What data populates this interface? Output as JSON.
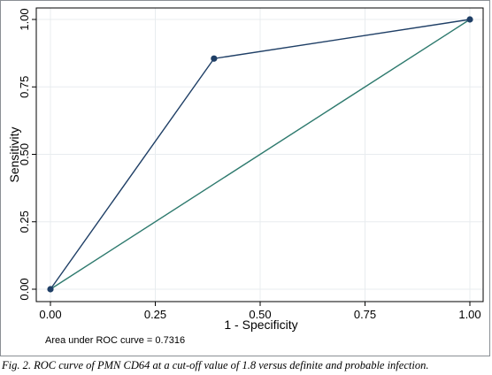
{
  "caption": "Fig. 2. ROC curve of PMN CD64 at a cut-off value of 1.8 versus definite and probable infection.",
  "chart_data": {
    "type": "line",
    "xlabel": "1 - Specificity",
    "ylabel": "Sensitivity",
    "xlim": [
      0,
      1
    ],
    "ylim": [
      0,
      1
    ],
    "x_ticks": [
      "0.00",
      "0.25",
      "0.50",
      "0.75",
      "1.00"
    ],
    "y_ticks": [
      "0.00",
      "0.25",
      "0.50",
      "0.75",
      "1.00"
    ],
    "grid": true,
    "series": [
      {
        "role": "roc-curve",
        "color": "#1f3f66",
        "markers": true,
        "points": [
          {
            "x": 0.0,
            "y": 0.0
          },
          {
            "x": 0.39,
            "y": 0.855
          },
          {
            "x": 1.0,
            "y": 1.0
          }
        ]
      },
      {
        "role": "reference-line",
        "color": "#2e7a6e",
        "markers": false,
        "points": [
          {
            "x": 0.0,
            "y": 0.0
          },
          {
            "x": 1.0,
            "y": 1.0
          }
        ]
      }
    ],
    "annotation": "Area under ROC curve = 0.7316"
  }
}
